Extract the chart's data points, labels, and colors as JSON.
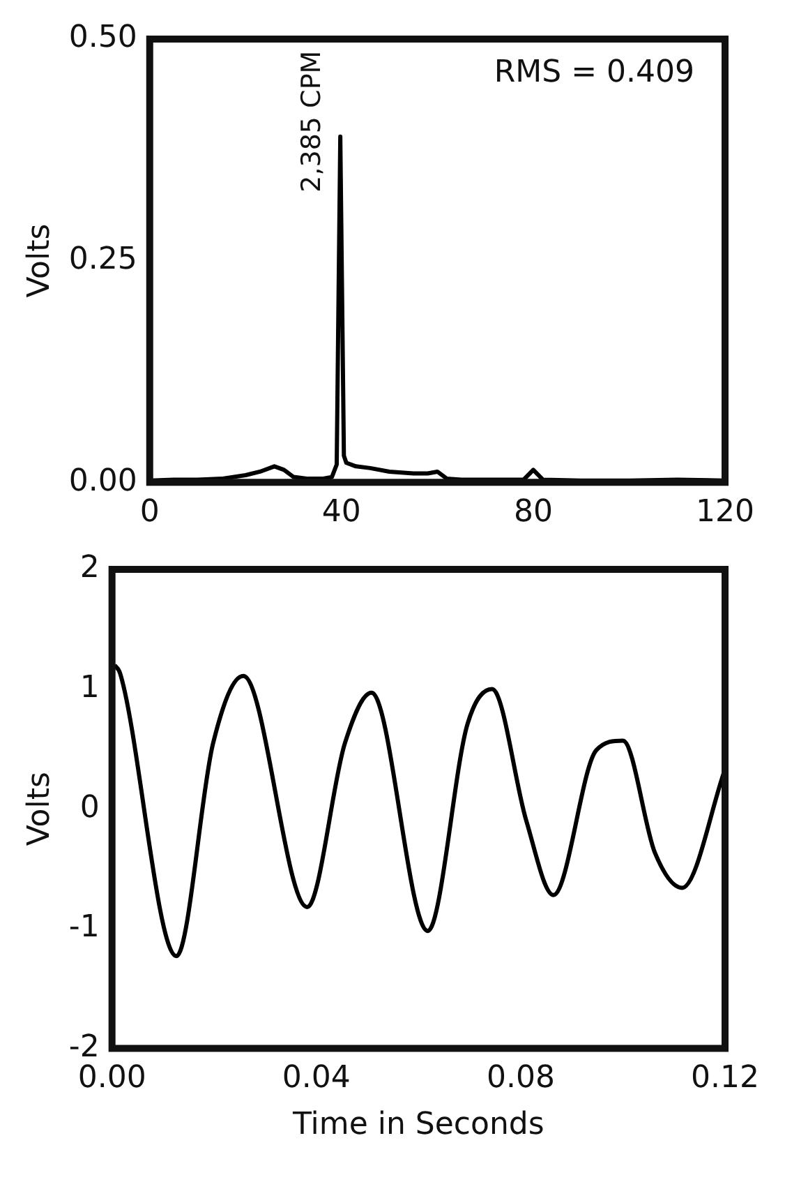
{
  "chart_data": [
    {
      "type": "line",
      "ylabel": "Volts",
      "annotations": [
        "RMS = 0.409",
        {
          "text": "2,385 CPM",
          "x": 39.75,
          "y": 0.39
        }
      ],
      "color": "#000000",
      "xlim": [
        0,
        120
      ],
      "xticks": [
        0,
        40,
        80,
        120
      ],
      "ylim": [
        0,
        0.5
      ],
      "yticks": [
        {
          "value": 0,
          "label": "0.00"
        },
        {
          "value": 0.25,
          "label": "0.25"
        },
        {
          "value": 0.5,
          "label": "0.50"
        }
      ],
      "grid": false,
      "legend": false,
      "x": [
        0,
        5,
        10,
        15,
        20,
        23,
        26,
        28,
        30,
        33,
        36,
        38,
        39,
        39.75,
        40.5,
        41,
        43,
        46,
        50,
        55,
        58,
        60,
        62,
        65,
        70,
        78,
        80,
        82,
        90,
        100,
        110,
        120
      ],
      "values": [
        0.002,
        0.003,
        0.003,
        0.004,
        0.008,
        0.012,
        0.018,
        0.014,
        0.006,
        0.004,
        0.004,
        0.006,
        0.02,
        0.39,
        0.03,
        0.022,
        0.018,
        0.016,
        0.012,
        0.01,
        0.01,
        0.012,
        0.004,
        0.003,
        0.003,
        0.003,
        0.014,
        0.003,
        0.002,
        0.002,
        0.003,
        0.002
      ]
    },
    {
      "type": "line",
      "xlabel": "Time in Seconds",
      "ylabel": "Volts",
      "color": "#000000",
      "xlim": [
        0,
        0.12
      ],
      "xticks": [
        {
          "value": 0,
          "label": "0.00"
        },
        {
          "value": 0.04,
          "label": "0.04"
        },
        {
          "value": 0.08,
          "label": "0.08"
        },
        {
          "value": 0.12,
          "label": "0.12"
        }
      ],
      "ylim": [
        -2,
        2
      ],
      "yticks": [
        -2,
        -1,
        0,
        1,
        2
      ],
      "grid": false,
      "legend": false,
      "x": [
        0.0005,
        0.0016,
        0.0126,
        0.0198,
        0.0257,
        0.0382,
        0.0456,
        0.0508,
        0.0618,
        0.0696,
        0.0744,
        0.0811,
        0.0864,
        0.0948,
        0.1,
        0.1063,
        0.1116,
        0.12
      ],
      "values": [
        1.2,
        1.13,
        -1.23,
        0.55,
        1.11,
        -0.82,
        0.55,
        0.97,
        -1.02,
        0.71,
        1.0,
        -0.1,
        -0.72,
        0.49,
        0.57,
        -0.37,
        -0.66,
        0.33
      ]
    }
  ]
}
